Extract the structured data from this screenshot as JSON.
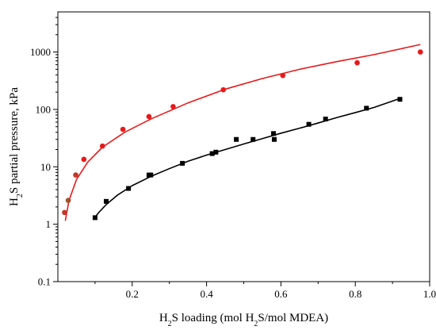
{
  "chart_data": {
    "type": "scatter",
    "xlabel": {
      "parts": [
        {
          "text": "H",
          "sub": false
        },
        {
          "text": "2",
          "sub": true
        },
        {
          "text": "S loading (mol H",
          "sub": false
        },
        {
          "text": "2",
          "sub": true
        },
        {
          "text": "S/mol MDEA)",
          "sub": false
        }
      ]
    },
    "ylabel": {
      "parts": [
        {
          "text": "H",
          "sub": false
        },
        {
          "text": "2",
          "sub": true
        },
        {
          "text": "S partial pressure, kPa",
          "sub": false
        }
      ]
    },
    "xlim": [
      0.0,
      1.0
    ],
    "ylim": [
      0.1,
      5000
    ],
    "yscale": "log",
    "x_ticks": [
      0.2,
      0.4,
      0.6,
      0.8,
      1.0
    ],
    "x_tick_labels": [
      "0.2",
      "0.4",
      "0.6",
      "0.8",
      "1.0"
    ],
    "y_ticks": [
      0.1,
      1,
      10,
      100,
      1000
    ],
    "y_tick_labels": [
      "0.1",
      "1",
      "10",
      "100",
      "1000"
    ],
    "grid": false,
    "series": [
      {
        "marker": "circle",
        "color": "#e8191a",
        "points": [
          {
            "x": 0.018,
            "y": 1.6,
            "color": "#c0392b"
          },
          {
            "x": 0.028,
            "y": 2.6,
            "color": "#a0522d"
          },
          {
            "x": 0.048,
            "y": 7.2,
            "color": "#c0392b"
          },
          {
            "x": 0.07,
            "y": 13.5
          },
          {
            "x": 0.12,
            "y": 23
          },
          {
            "x": 0.175,
            "y": 45
          },
          {
            "x": 0.245,
            "y": 75
          },
          {
            "x": 0.31,
            "y": 112
          },
          {
            "x": 0.445,
            "y": 220
          },
          {
            "x": 0.605,
            "y": 390
          },
          {
            "x": 0.805,
            "y": 650
          },
          {
            "x": 0.975,
            "y": 1000
          }
        ],
        "fit": {
          "color": "#e8191a",
          "points": [
            {
              "x": 0.02,
              "y": 1.15
            },
            {
              "x": 0.03,
              "y": 2.6
            },
            {
              "x": 0.05,
              "y": 6.0
            },
            {
              "x": 0.08,
              "y": 12.0
            },
            {
              "x": 0.12,
              "y": 22.0
            },
            {
              "x": 0.18,
              "y": 40.0
            },
            {
              "x": 0.25,
              "y": 68.0
            },
            {
              "x": 0.35,
              "y": 130.0
            },
            {
              "x": 0.45,
              "y": 225.0
            },
            {
              "x": 0.55,
              "y": 345.0
            },
            {
              "x": 0.65,
              "y": 500.0
            },
            {
              "x": 0.75,
              "y": 680.0
            },
            {
              "x": 0.85,
              "y": 900.0
            },
            {
              "x": 0.975,
              "y": 1350.0
            }
          ]
        }
      },
      {
        "marker": "square",
        "color": "#000000",
        "points": [
          {
            "x": 0.1,
            "y": 1.3
          },
          {
            "x": 0.13,
            "y": 2.5
          },
          {
            "x": 0.19,
            "y": 4.2
          },
          {
            "x": 0.245,
            "y": 7.2
          },
          {
            "x": 0.25,
            "y": 7.2
          },
          {
            "x": 0.335,
            "y": 11.5
          },
          {
            "x": 0.415,
            "y": 17
          },
          {
            "x": 0.425,
            "y": 18
          },
          {
            "x": 0.48,
            "y": 30
          },
          {
            "x": 0.525,
            "y": 30
          },
          {
            "x": 0.58,
            "y": 38
          },
          {
            "x": 0.582,
            "y": 30
          },
          {
            "x": 0.675,
            "y": 55
          },
          {
            "x": 0.72,
            "y": 68
          },
          {
            "x": 0.83,
            "y": 105
          },
          {
            "x": 0.92,
            "y": 150
          }
        ],
        "fit": {
          "color": "#000000",
          "points": [
            {
              "x": 0.095,
              "y": 1.2
            },
            {
              "x": 0.11,
              "y": 1.6
            },
            {
              "x": 0.13,
              "y": 2.2
            },
            {
              "x": 0.16,
              "y": 3.2
            },
            {
              "x": 0.2,
              "y": 4.7
            },
            {
              "x": 0.25,
              "y": 6.8
            },
            {
              "x": 0.3,
              "y": 9.3
            },
            {
              "x": 0.35,
              "y": 12.5
            },
            {
              "x": 0.4,
              "y": 16.0
            },
            {
              "x": 0.45,
              "y": 20.0
            },
            {
              "x": 0.5,
              "y": 25.0
            },
            {
              "x": 0.55,
              "y": 31.0
            },
            {
              "x": 0.6,
              "y": 38.5
            },
            {
              "x": 0.65,
              "y": 47.0
            },
            {
              "x": 0.7,
              "y": 58.0
            },
            {
              "x": 0.75,
              "y": 72.0
            },
            {
              "x": 0.8,
              "y": 88.0
            },
            {
              "x": 0.85,
              "y": 108.0
            },
            {
              "x": 0.92,
              "y": 155.0
            }
          ]
        }
      }
    ]
  }
}
